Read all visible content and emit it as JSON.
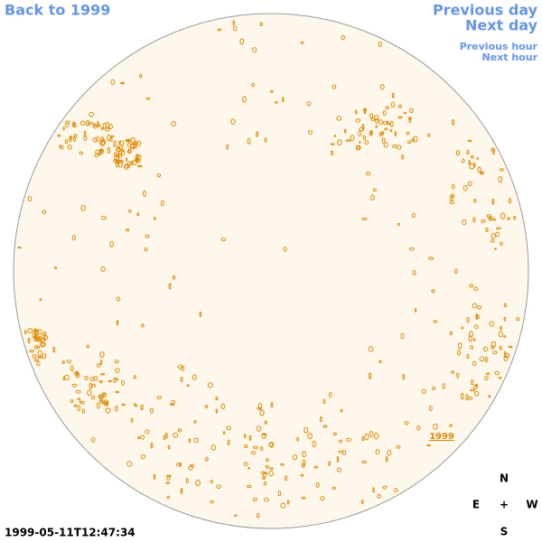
{
  "navigation": {
    "back": "Back to 1999",
    "previous_day": "Previous day",
    "next_day": "Next day",
    "previous_hour": "Previous hour",
    "next_hour": "Next hour"
  },
  "disk": {
    "label": "1999"
  },
  "compass": {
    "north": "N",
    "east": "E",
    "center": "+",
    "west": "W",
    "south": "S"
  },
  "timestamp": "1999-05-11T12:47:34"
}
